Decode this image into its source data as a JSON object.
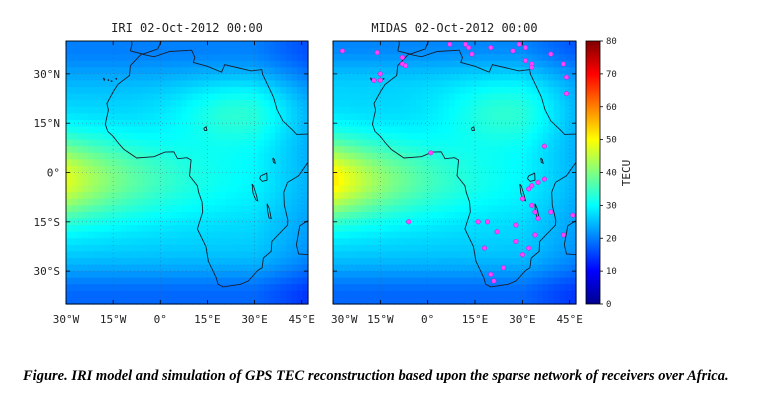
{
  "chart_data": {
    "type": "heatmap",
    "panels": [
      {
        "title": "IRI 02-Oct-2012 00:00",
        "xlim": [
          -30,
          47
        ],
        "ylim": [
          -40,
          40
        ],
        "x_ticks": [
          -30,
          -15,
          0,
          15,
          30,
          45
        ],
        "x_tick_labels": [
          "30°W",
          "15°W",
          "0°",
          "15°E",
          "30°E",
          "45°E"
        ],
        "y_ticks": [
          30,
          15,
          0,
          -15,
          -30
        ],
        "y_tick_labels": [
          "30°N",
          "15°N",
          "0°",
          "15°S",
          "30°S"
        ],
        "receivers": []
      },
      {
        "title": "MIDAS 02-Oct-2012 00:00",
        "xlim": [
          -30,
          47
        ],
        "ylim": [
          -40,
          40
        ],
        "x_ticks": [
          -30,
          -15,
          0,
          15,
          30,
          45
        ],
        "x_tick_labels": [
          "30°W",
          "15°W",
          "0°",
          "15°E",
          "30°E",
          "45°E"
        ],
        "receivers": [
          [
            -27,
            37
          ],
          [
            -16,
            36.5
          ],
          [
            -8,
            35
          ],
          [
            -8,
            33
          ],
          [
            -7,
            32.5
          ],
          [
            -17,
            28
          ],
          [
            -15,
            28
          ],
          [
            -15,
            30
          ],
          [
            7,
            39
          ],
          [
            12,
            39
          ],
          [
            13,
            38
          ],
          [
            14,
            36
          ],
          [
            20,
            38
          ],
          [
            27,
            37
          ],
          [
            29,
            39
          ],
          [
            31,
            38
          ],
          [
            31,
            34
          ],
          [
            33,
            33
          ],
          [
            33,
            32
          ],
          [
            39,
            36
          ],
          [
            43,
            33
          ],
          [
            44,
            29
          ],
          [
            44,
            24
          ],
          [
            37,
            8
          ],
          [
            37,
            -2
          ],
          [
            35,
            -3
          ],
          [
            33,
            -4
          ],
          [
            32,
            -5
          ],
          [
            30,
            -8
          ],
          [
            33,
            -10
          ],
          [
            34,
            -12
          ],
          [
            35,
            -14
          ],
          [
            39,
            -12
          ],
          [
            46,
            -13
          ],
          [
            43,
            -19
          ],
          [
            -6,
            -15
          ],
          [
            16,
            -15
          ],
          [
            19,
            -15
          ],
          [
            22,
            -18
          ],
          [
            28,
            -16
          ],
          [
            34,
            -19
          ],
          [
            18,
            -23
          ],
          [
            28,
            -21
          ],
          [
            30,
            -25
          ],
          [
            32,
            -23
          ],
          [
            24,
            -29
          ],
          [
            20,
            -31
          ],
          [
            21,
            -33
          ],
          [
            1,
            6
          ]
        ]
      }
    ],
    "colorbar": {
      "label": "TECU",
      "range": [
        0,
        80
      ],
      "ticks": [
        0,
        10,
        20,
        30,
        40,
        50,
        60,
        70,
        80
      ]
    }
  },
  "caption": "Figure. IRI model and simulation of GPS TEC reconstruction based upon the sparse network of receivers over Africa."
}
